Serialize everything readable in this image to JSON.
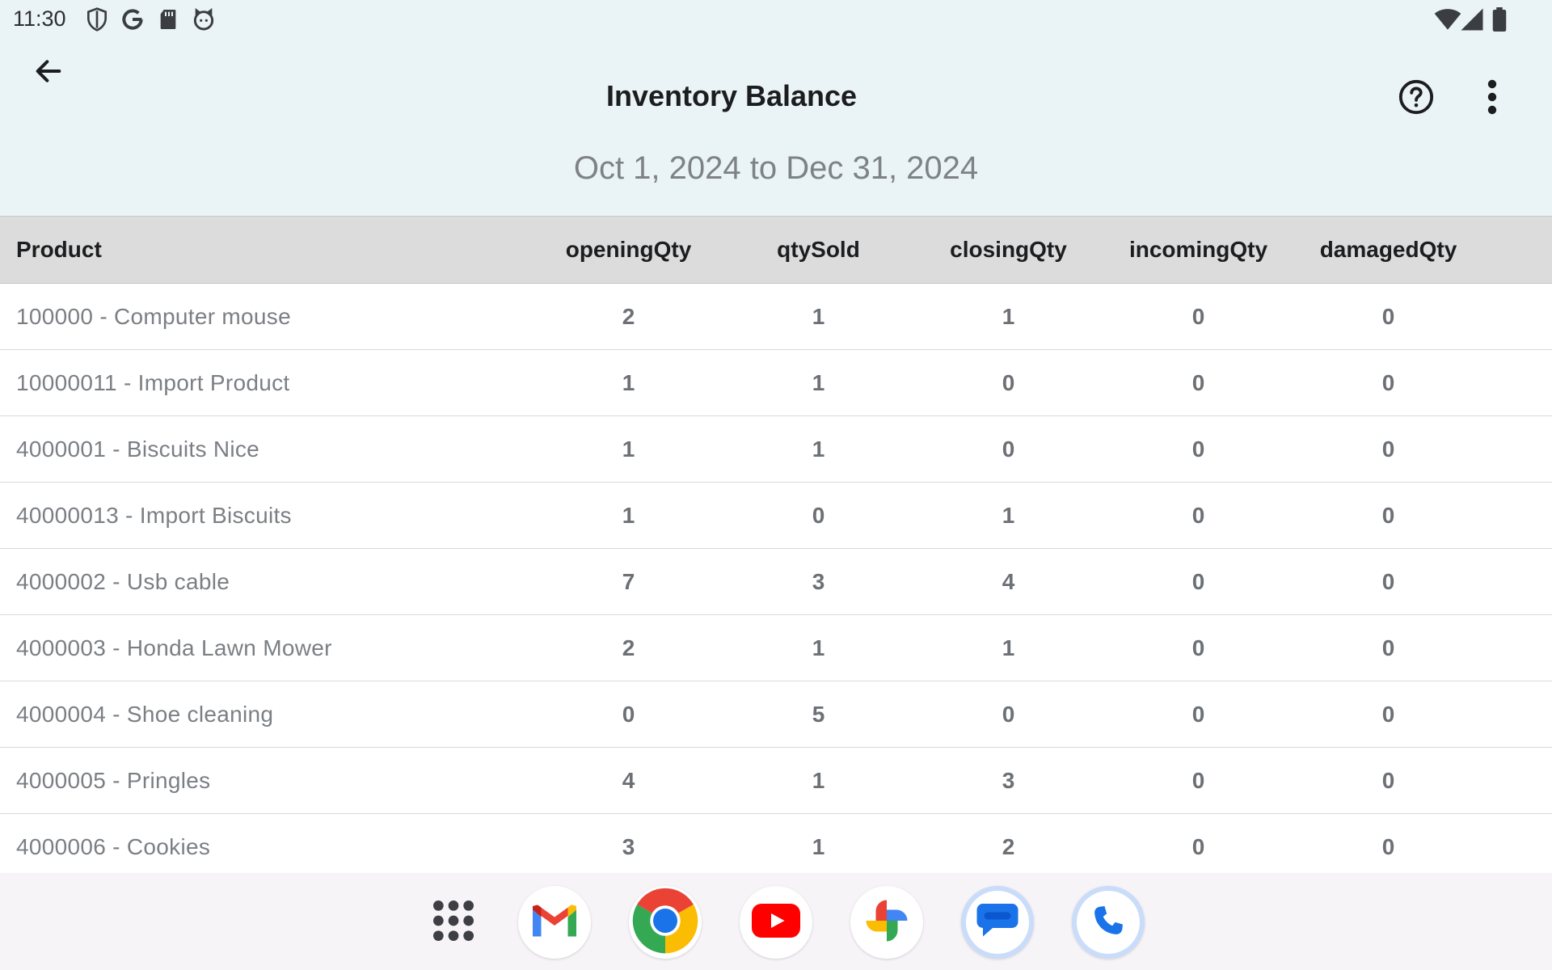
{
  "status_bar": {
    "time": "11:30",
    "left_icons": [
      "shield-icon",
      "google-icon",
      "sd-card-icon",
      "cat-icon"
    ],
    "right_icons": [
      "wifi-icon",
      "signal-icon",
      "battery-icon"
    ]
  },
  "app_bar": {
    "title": "Inventory Balance",
    "back_icon": "arrow-left-icon",
    "help_icon": "help-circle-icon",
    "more_icon": "more-vertical-icon"
  },
  "date_range": "Oct 1, 2024 to Dec 31, 2024",
  "table": {
    "columns": [
      "Product",
      "openingQty",
      "qtySold",
      "closingQty",
      "incomingQty",
      "damagedQty"
    ],
    "rows": [
      [
        "100000 - Computer mouse",
        "2",
        "1",
        "1",
        "0",
        "0"
      ],
      [
        "10000011 - Import Product",
        "1",
        "1",
        "0",
        "0",
        "0"
      ],
      [
        "4000001 - Biscuits Nice",
        "1",
        "1",
        "0",
        "0",
        "0"
      ],
      [
        "40000013 - Import Biscuits",
        "1",
        "0",
        "1",
        "0",
        "0"
      ],
      [
        "4000002 - Usb cable",
        "7",
        "3",
        "4",
        "0",
        "0"
      ],
      [
        "4000003 - Honda Lawn Mower",
        "2",
        "1",
        "1",
        "0",
        "0"
      ],
      [
        "4000004 - Shoe cleaning",
        "0",
        "5",
        "0",
        "0",
        "0"
      ],
      [
        "4000005 - Pringles",
        "4",
        "1",
        "3",
        "0",
        "0"
      ],
      [
        "4000006 - Cookies",
        "3",
        "1",
        "2",
        "0",
        "0"
      ]
    ]
  },
  "dock": {
    "apps": [
      "app-drawer-icon",
      "gmail-icon",
      "chrome-icon",
      "youtube-icon",
      "photos-icon",
      "messages-icon",
      "phone-icon"
    ]
  },
  "colors": {
    "header_bg": "#eaf3f5",
    "table_header_bg": "#dcdcdc",
    "dock_bg": "#f7f4f8"
  }
}
